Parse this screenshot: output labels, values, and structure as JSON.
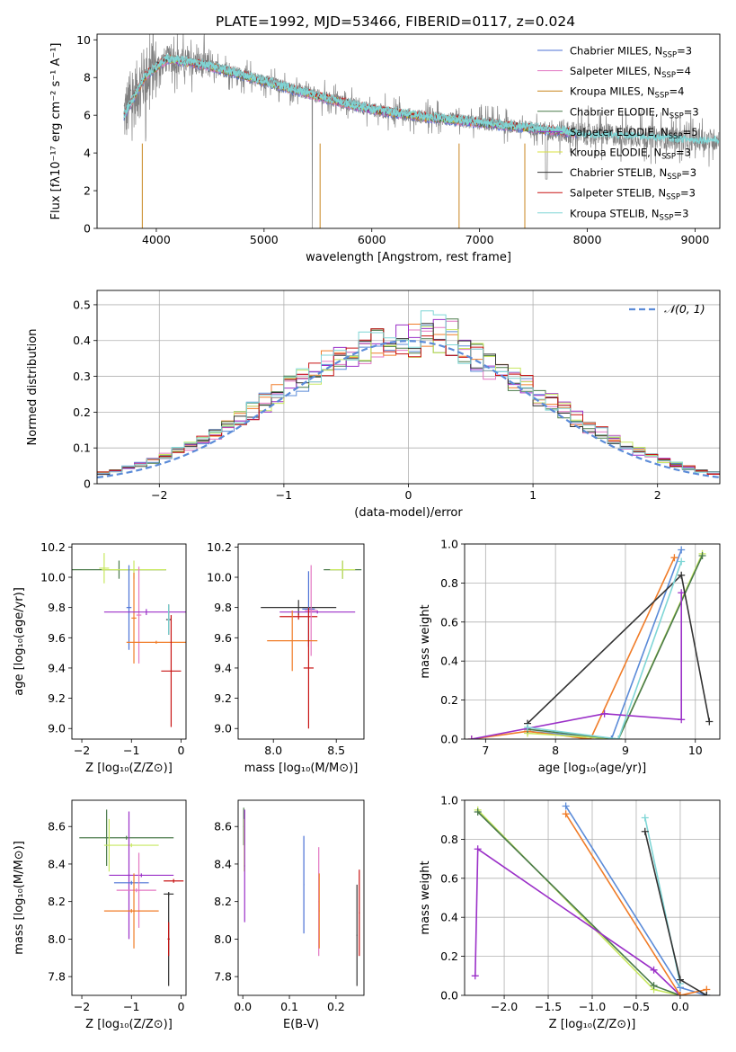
{
  "figure": {
    "title": "PLATE=1992, MJD=53466, FIBERID=0117, z=0.024"
  },
  "chart_data": [
    {
      "id": "spectrum",
      "type": "line",
      "xlabel": "wavelength [Angstrom, rest frame]",
      "ylabel": "Flux [fλ10⁻¹⁷ erg cm⁻² s⁻¹ A⁻¹]",
      "xlim": [
        3450,
        9230
      ],
      "ylim": [
        0,
        10.3
      ],
      "xticks": [
        4000,
        5000,
        6000,
        7000,
        8000,
        9000
      ],
      "yticks": [
        0,
        2,
        4,
        6,
        8,
        10
      ],
      "legend_position": "top-right",
      "data_color": "#808080",
      "data_continuum": {
        "x": [
          3700,
          3900,
          4100,
          4300,
          4500,
          5000,
          5500,
          6000,
          6500,
          7000,
          7500,
          8000,
          8500,
          9000
        ],
        "y": [
          6.0,
          8.1,
          9.0,
          8.8,
          8.6,
          7.8,
          7.0,
          6.3,
          5.9,
          5.6,
          5.3,
          5.0,
          4.9,
          4.7
        ]
      },
      "models": [
        {
          "label": "Chabrier MILES",
          "nssp": "3",
          "color": "#4c72d6"
        },
        {
          "label": "Salpeter MILES",
          "nssp": "4",
          "color": "#e377c2"
        },
        {
          "label": "Kroupa MILES",
          "nssp": "4",
          "color": "#c8861f"
        },
        {
          "label": "Chabrier ELODIE",
          "nssp": "3",
          "color": "#4a7a4a"
        },
        {
          "label": "Salpeter ELODIE",
          "nssp": "5",
          "color": "#9b30c8"
        },
        {
          "label": "Kroupa ELODIE",
          "nssp": "3",
          "color": "#d8e040"
        },
        {
          "label": "Chabrier STELIB",
          "nssp": "3",
          "color": "#333333"
        },
        {
          "label": "Salpeter STELIB",
          "nssp": "3",
          "color": "#c81414"
        },
        {
          "label": "Kroupa STELIB",
          "nssp": "3",
          "color": "#7fd6d6"
        }
      ]
    },
    {
      "id": "residuals",
      "type": "line",
      "xlabel": "(data-model)/error",
      "ylabel": "Normed distribution",
      "xlim": [
        -2.5,
        2.5
      ],
      "ylim": [
        0,
        0.54
      ],
      "xticks": [
        -2,
        -1,
        0,
        1,
        2
      ],
      "yticks": [
        0.0,
        0.1,
        0.2,
        0.3,
        0.4,
        0.5
      ],
      "grid": true,
      "legend_position": "top-right",
      "gaussian_label": "𝒩(0, 1)",
      "gaussian_color": "#5b8bd8",
      "bin_width": 0.1,
      "hist_colors": [
        "#5b8bd8",
        "#e377c2",
        "#f07c28",
        "#4a7a4a",
        "#9b30c8",
        "#c8e860",
        "#333333",
        "#c81414",
        "#7fd6d6"
      ]
    },
    {
      "id": "age-vs-Z",
      "type": "scatter",
      "xlabel": "Z [log₁₀(Z/Z⊙)]",
      "ylabel": "age [log₁₀(age/yr)]",
      "xlim": [
        -2.2,
        0.1
      ],
      "ylim": [
        8.93,
        10.22
      ],
      "xticks": [
        -2,
        -1,
        0
      ],
      "yticks": [
        9.0,
        9.2,
        9.4,
        9.6,
        9.8,
        10.0,
        10.2
      ],
      "errorbars": [
        {
          "x": -1.25,
          "xerr": 0.95,
          "y": 10.05,
          "yerr": 0.06,
          "color": "#4a7a4a"
        },
        {
          "x": -0.95,
          "xerr": 0.65,
          "y": 10.05,
          "yerr": 0.06,
          "color": "#c8e860"
        },
        {
          "x": -1.55,
          "xerr": 0.1,
          "y": 10.06,
          "yerr": 0.1,
          "color": "#c8e860"
        },
        {
          "x": -1.05,
          "xerr": 0.05,
          "y": 9.8,
          "yerr": 0.28,
          "color": "#4c72d6"
        },
        {
          "x": -0.85,
          "xerr": 0.05,
          "y": 9.75,
          "yerr": 0.32,
          "color": "#e377c2"
        },
        {
          "x": -0.95,
          "xerr": 0.05,
          "y": 9.73,
          "yerr": 0.3,
          "color": "#f07c28"
        },
        {
          "x": -0.7,
          "xerr": 0.85,
          "y": 9.77,
          "yerr": 0.02,
          "color": "#9b30c8"
        },
        {
          "x": -0.5,
          "xerr": 0.6,
          "y": 9.57,
          "yerr": 0.01,
          "color": "#f07c28"
        },
        {
          "x": -0.25,
          "xerr": 0.05,
          "y": 9.72,
          "yerr": 0.1,
          "color": "#333333"
        },
        {
          "x": -0.25,
          "xerr": 0.02,
          "y": 9.72,
          "yerr": 0.1,
          "color": "#7fd6d6"
        },
        {
          "x": -0.2,
          "xerr": 0.2,
          "y": 9.38,
          "yerr": 0.37,
          "color": "#c81414"
        }
      ]
    },
    {
      "id": "age-vs-mass",
      "type": "scatter",
      "xlabel": "mass [log₁₀(M/M⊙)]",
      "ylabel": "",
      "xlim": [
        7.72,
        8.72
      ],
      "ylim": [
        8.93,
        10.22
      ],
      "xticks": [
        8.0,
        8.5
      ],
      "yticks": [
        9.0,
        9.2,
        9.4,
        9.6,
        9.8,
        10.0,
        10.2
      ],
      "errorbars": [
        {
          "x": 8.55,
          "xerr": 0.15,
          "y": 10.05,
          "yerr": 0.06,
          "color": "#4a7a4a"
        },
        {
          "x": 8.55,
          "xerr": 0.1,
          "y": 10.05,
          "yerr": 0.06,
          "color": "#c8e860"
        },
        {
          "x": 8.2,
          "xerr": 0.3,
          "y": 9.8,
          "yerr": 0.05,
          "color": "#333333"
        },
        {
          "x": 8.2,
          "xerr": 0.15,
          "y": 9.74,
          "yerr": 0.02,
          "color": "#c81414"
        },
        {
          "x": 8.35,
          "xerr": 0.3,
          "y": 9.77,
          "yerr": 0.01,
          "color": "#9b30c8"
        },
        {
          "x": 8.28,
          "xerr": 0.05,
          "y": 9.79,
          "yerr": 0.25,
          "color": "#4c72d6"
        },
        {
          "x": 8.3,
          "xerr": 0.05,
          "y": 9.78,
          "yerr": 0.3,
          "color": "#e377c2"
        },
        {
          "x": 8.15,
          "xerr": 0.2,
          "y": 9.58,
          "yerr": 0.2,
          "color": "#f07c28"
        },
        {
          "x": 8.28,
          "xerr": 0.04,
          "y": 9.4,
          "yerr": 0.4,
          "color": "#c81414"
        }
      ]
    },
    {
      "id": "mass-weight-vs-age",
      "type": "line",
      "xlabel": "age [log₁₀(age/yr)]",
      "ylabel": "mass weight",
      "xlim": [
        6.7,
        10.35
      ],
      "ylim": [
        0,
        1.0
      ],
      "xticks": [
        7,
        8,
        9,
        10
      ],
      "yticks": [
        0.0,
        0.2,
        0.4,
        0.6,
        0.8,
        1.0
      ],
      "grid": true,
      "series": [
        {
          "color": "#5b8bd8",
          "x": [
            7.6,
            8.8,
            9.8
          ],
          "y": [
            0.04,
            0.0,
            0.97
          ]
        },
        {
          "color": "#f07c28",
          "x": [
            6.8,
            7.6,
            8.5,
            9.7
          ],
          "y": [
            0.0,
            0.04,
            0.0,
            0.93
          ]
        },
        {
          "color": "#c8e860",
          "x": [
            7.6,
            8.9,
            10.1
          ],
          "y": [
            0.03,
            0.0,
            0.95
          ]
        },
        {
          "color": "#4a7a4a",
          "x": [
            7.6,
            8.9,
            10.1
          ],
          "y": [
            0.05,
            0.0,
            0.94
          ]
        },
        {
          "color": "#9b30c8",
          "x": [
            6.8,
            8.7,
            9.8,
            9.8
          ],
          "y": [
            0.0,
            0.13,
            0.1,
            0.75
          ]
        },
        {
          "color": "#333333",
          "x": [
            7.6,
            9.8,
            10.2
          ],
          "y": [
            0.08,
            0.84,
            0.09
          ]
        },
        {
          "color": "#7fd6d6",
          "x": [
            7.6,
            8.9,
            9.8
          ],
          "y": [
            0.06,
            0.0,
            0.91
          ]
        }
      ]
    },
    {
      "id": "mass-vs-Z",
      "type": "scatter",
      "xlabel": "Z [log₁₀(Z/Z⊙)]",
      "ylabel": "mass [log₁₀(M/M⊙)]",
      "xlim": [
        -2.2,
        0.1
      ],
      "ylim": [
        7.7,
        8.74
      ],
      "xticks": [
        -2,
        -1,
        0
      ],
      "yticks": [
        7.8,
        8.0,
        8.2,
        8.4,
        8.6
      ],
      "errorbars": [
        {
          "x": -1.1,
          "xerr": 0.95,
          "y": 8.54,
          "yerr": 0.01,
          "color": "#4a7a4a"
        },
        {
          "x": -1.5,
          "xerr": 0.02,
          "y": 8.54,
          "yerr": 0.15,
          "color": "#4a7a4a"
        },
        {
          "x": -1.0,
          "xerr": 0.55,
          "y": 8.5,
          "yerr": 0.01,
          "color": "#c8e860"
        },
        {
          "x": -1.45,
          "xerr": 0.02,
          "y": 8.5,
          "yerr": 0.14,
          "color": "#c8e860"
        },
        {
          "x": -0.8,
          "xerr": 0.65,
          "y": 8.34,
          "yerr": 0.01,
          "color": "#9b30c8"
        },
        {
          "x": -1.05,
          "xerr": 0.02,
          "y": 8.34,
          "yerr": 0.34,
          "color": "#9b30c8"
        },
        {
          "x": -1.0,
          "xerr": 0.35,
          "y": 8.3,
          "yerr": 0.01,
          "color": "#4c72d6"
        },
        {
          "x": -0.9,
          "xerr": 0.4,
          "y": 8.26,
          "yerr": 0.01,
          "color": "#e377c2"
        },
        {
          "x": -0.85,
          "xerr": 0.02,
          "y": 8.26,
          "yerr": 0.2,
          "color": "#e377c2"
        },
        {
          "x": -1.0,
          "xerr": 0.55,
          "y": 8.15,
          "yerr": 0.01,
          "color": "#f07c28"
        },
        {
          "x": -0.95,
          "xerr": 0.02,
          "y": 8.15,
          "yerr": 0.2,
          "color": "#f07c28"
        },
        {
          "x": -0.25,
          "xerr": 0.1,
          "y": 8.24,
          "yerr": 0.01,
          "color": "#333333"
        },
        {
          "x": -0.25,
          "xerr": 0.02,
          "y": 8.0,
          "yerr": 0.25,
          "color": "#333333"
        },
        {
          "x": -0.15,
          "xerr": 0.2,
          "y": 8.31,
          "yerr": 0.01,
          "color": "#c81414"
        },
        {
          "x": -0.25,
          "xerr": 0.02,
          "y": 8.0,
          "yerr": 0.09,
          "color": "#c81414"
        }
      ]
    },
    {
      "id": "mass-vs-ebv",
      "type": "scatter",
      "xlabel": "E(B-V)",
      "ylabel": "",
      "xlim": [
        -0.01,
        0.26
      ],
      "ylim": [
        7.7,
        8.74
      ],
      "xticks": [
        0.0,
        0.1,
        0.2
      ],
      "yticks": [
        7.8,
        8.0,
        8.2,
        8.4,
        8.6
      ],
      "errorbars": [
        {
          "x": 0.002,
          "xerr": 0.001,
          "y": 8.6,
          "yerr": 0.1,
          "color": "#4a7a4a"
        },
        {
          "x": 0.003,
          "xerr": 0.001,
          "y": 8.5,
          "yerr": 0.14,
          "color": "#c8e860"
        },
        {
          "x": 0.004,
          "xerr": 0.001,
          "y": 8.39,
          "yerr": 0.3,
          "color": "#9b30c8"
        },
        {
          "x": 0.131,
          "xerr": 0.001,
          "y": 8.29,
          "yerr": 0.26,
          "color": "#4c72d6"
        },
        {
          "x": 0.163,
          "xerr": 0.001,
          "y": 8.2,
          "yerr": 0.29,
          "color": "#e377c2"
        },
        {
          "x": 0.164,
          "xerr": 0.001,
          "y": 8.15,
          "yerr": 0.2,
          "color": "#f07c28"
        },
        {
          "x": 0.245,
          "xerr": 0.001,
          "y": 8.02,
          "yerr": 0.27,
          "color": "#333333"
        },
        {
          "x": 0.25,
          "xerr": 0.001,
          "y": 8.14,
          "yerr": 0.23,
          "color": "#c81414"
        }
      ]
    },
    {
      "id": "mass-weight-vs-Z",
      "type": "line",
      "xlabel": "Z [log₁₀(Z/Z⊙)]",
      "ylabel": "mass weight",
      "xlim": [
        -2.45,
        0.45
      ],
      "ylim": [
        0,
        1.0
      ],
      "xticks": [
        -2.0,
        -1.5,
        -1.0,
        -0.5,
        0.0
      ],
      "yticks": [
        0.0,
        0.2,
        0.4,
        0.6,
        0.8,
        1.0
      ],
      "grid": true,
      "series": [
        {
          "color": "#c8e860",
          "x": [
            -2.3,
            -0.3,
            0.0
          ],
          "y": [
            0.95,
            0.03,
            0.0
          ]
        },
        {
          "color": "#4a7a4a",
          "x": [
            -2.3,
            -0.3,
            0.0
          ],
          "y": [
            0.94,
            0.05,
            0.0
          ]
        },
        {
          "color": "#9b30c8",
          "x": [
            -2.33,
            -2.3,
            -0.3,
            0.0
          ],
          "y": [
            0.1,
            0.75,
            0.13,
            0.0
          ]
        },
        {
          "color": "#5b8bd8",
          "x": [
            -1.3,
            0.0,
            0.3
          ],
          "y": [
            0.97,
            0.04,
            0.0
          ]
        },
        {
          "color": "#f07c28",
          "x": [
            -1.3,
            0.0,
            0.3
          ],
          "y": [
            0.93,
            0.0,
            0.03
          ]
        },
        {
          "color": "#7fd6d6",
          "x": [
            -0.4,
            0.0
          ],
          "y": [
            0.91,
            0.06
          ]
        },
        {
          "color": "#333333",
          "x": [
            -0.4,
            0.0,
            0.3
          ],
          "y": [
            0.84,
            0.08,
            0.0
          ]
        }
      ]
    }
  ]
}
